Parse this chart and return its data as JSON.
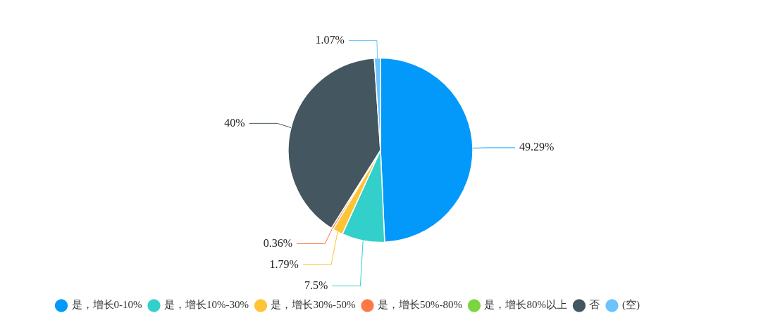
{
  "chart_data": {
    "type": "pie",
    "categories": [
      "是，增长0-10%",
      "是，增长10%-30%",
      "是，增长30%-50%",
      "是，增长50%-80%",
      "是，增长80%以上",
      "否",
      "(空)"
    ],
    "values": [
      49.29,
      7.5,
      1.79,
      0.36,
      0,
      40,
      1.07
    ],
    "colors": [
      "#0399fb",
      "#33d0cb",
      "#fec435",
      "#fd7a47",
      "#7bd442",
      "#44565f",
      "#6dc3fc"
    ],
    "value_labels": [
      "49.29%",
      "7.5%",
      "1.79%",
      "0.36%",
      null,
      "40%",
      "1.07%"
    ],
    "legend": "bottom"
  }
}
